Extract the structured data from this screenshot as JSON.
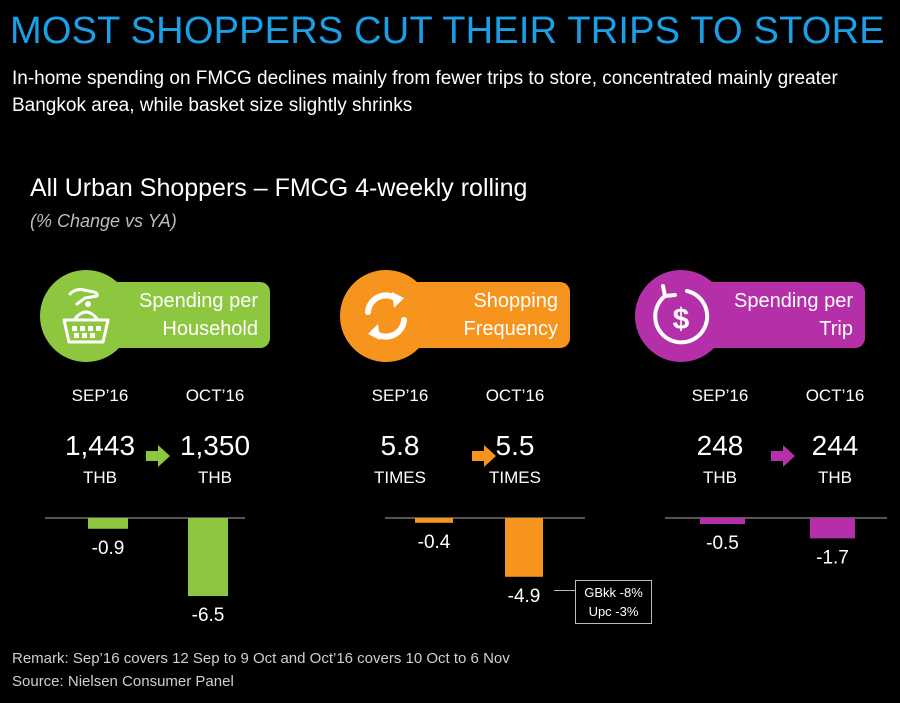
{
  "header": {
    "title": "MOST SHOPPERS CUT THEIR TRIPS TO STORE",
    "subtitle": "In-home spending on FMCG declines mainly from fewer trips to store, concentrated mainly greater Bangkok area, while basket size slightly shrinks"
  },
  "section": {
    "title": "All Urban Shoppers – FMCG 4-weekly rolling",
    "subtitle": "(% Change vs YA)"
  },
  "panels": [
    {
      "label": "Spending per\nHousehold",
      "color": "#8dc63f",
      "icon": "basket-icon",
      "periods": [
        "SEP’16",
        "OCT’16"
      ],
      "values": [
        "1,443",
        "1,350"
      ],
      "unit": "THB"
    },
    {
      "label": "Shopping\nFrequency",
      "color": "#f7941d",
      "icon": "refresh-arrows-icon",
      "periods": [
        "SEP’16",
        "OCT’16"
      ],
      "values": [
        "5.8",
        "5.5"
      ],
      "unit": "TIMES"
    },
    {
      "label": "Spending per\nTrip",
      "color": "#b42fa8",
      "icon": "dollar-coin-icon",
      "periods": [
        "SEP’16",
        "OCT’16"
      ],
      "values": [
        "248",
        "244"
      ],
      "unit": "THB"
    }
  ],
  "chart_data": [
    {
      "type": "bar",
      "title": "Spending per Household",
      "categories": [
        "SEP’16",
        "OCT’16"
      ],
      "values": [
        -0.9,
        -6.5
      ],
      "labels": [
        "-0.9",
        "-6.5"
      ],
      "color": "#8dc63f"
    },
    {
      "type": "bar",
      "title": "Shopping Frequency",
      "categories": [
        "SEP’16",
        "OCT’16"
      ],
      "values": [
        -0.4,
        -4.9
      ],
      "labels": [
        "-0.4",
        "-4.9"
      ],
      "color": "#f7941d"
    },
    {
      "type": "bar",
      "title": "Spending per Trip",
      "categories": [
        "SEP’16",
        "OCT’16"
      ],
      "values": [
        -0.5,
        -1.7
      ],
      "labels": [
        "-0.5",
        "-1.7"
      ],
      "color": "#b42fa8"
    }
  ],
  "callout": {
    "line1": "GBkk -8%",
    "line2": "Upc -3%"
  },
  "footer": {
    "remark": "Remark: Sep’16 covers 12 Sep to 9 Oct and Oct’16 covers 10 Oct to 6 Nov",
    "source": "Source: Nielsen Consumer Panel"
  }
}
